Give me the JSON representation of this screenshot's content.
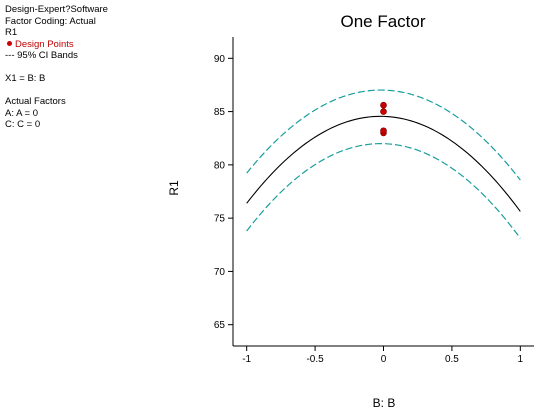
{
  "info": {
    "software": "Design-Expert?Software",
    "factor_coding": "Factor Coding: Actual",
    "response": "R1",
    "design_points_label": "Design Points",
    "ci_label": "--- 95% CI Bands",
    "x1": "X1 = B: B",
    "actual_factors_title": "Actual Factors",
    "factor_a": "A: A = 0",
    "factor_c": "C: C = 0"
  },
  "colors": {
    "fit_line": "#000000",
    "ci_band": "#1a9e9e",
    "design_point": "#cc0000",
    "axis": "#000000"
  },
  "chart_data": {
    "type": "line",
    "title": "One Factor",
    "xlabel": "B: B",
    "ylabel": "R1",
    "xlim": [
      -1.1,
      1.1
    ],
    "ylim": [
      63,
      92
    ],
    "x_ticks": [
      -1,
      -0.5,
      0,
      0.5,
      1
    ],
    "x_tick_labels": [
      "-1",
      "-0.5",
      "0",
      "0.5",
      "1"
    ],
    "y_ticks": [
      65,
      70,
      75,
      80,
      85,
      90
    ],
    "y_tick_labels": [
      "65",
      "70",
      "75",
      "80",
      "85",
      "90"
    ],
    "grid": false,
    "series": [
      {
        "role": "fit",
        "style": "solid",
        "x": [
          -1,
          -0.5,
          0,
          0.5,
          1
        ],
        "y": [
          76.5,
          82.4,
          84.5,
          82.5,
          75.5
        ]
      },
      {
        "role": "ci_upper",
        "style": "dashed",
        "x": [
          -1,
          -0.5,
          0,
          0.5,
          1
        ],
        "y": [
          79.3,
          85.0,
          87.0,
          85.0,
          78.5
        ]
      },
      {
        "role": "ci_lower",
        "style": "dashed",
        "x": [
          -1,
          -0.5,
          0,
          0.5,
          1
        ],
        "y": [
          73.9,
          79.8,
          82.0,
          79.9,
          73.0
        ]
      }
    ],
    "points": [
      {
        "x": 0,
        "y": 85.6
      },
      {
        "x": 0,
        "y": 85.0
      },
      {
        "x": 0,
        "y": 83.0
      },
      {
        "x": 0,
        "y": 83.2
      }
    ]
  }
}
